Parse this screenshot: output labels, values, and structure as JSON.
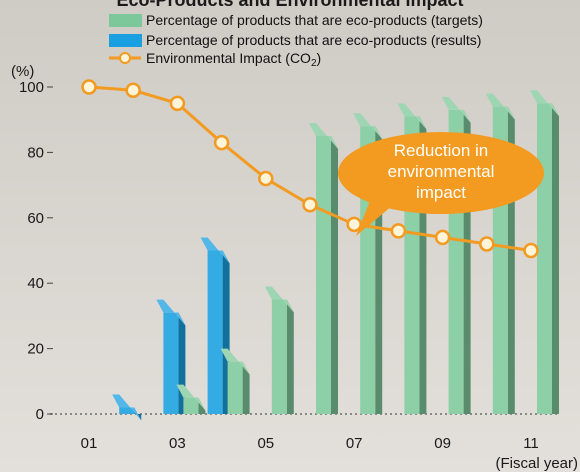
{
  "chart_data": {
    "type": "bar",
    "title": "Eco-Products and Environmental Impact",
    "categories": [
      "01",
      "02",
      "03",
      "04",
      "05",
      "06",
      "07",
      "08",
      "09",
      "10",
      "11"
    ],
    "x_tick_labels": [
      "01",
      "03",
      "05",
      "07",
      "09",
      "11"
    ],
    "xlabel": "(Fiscal year)",
    "ylabel": "(%)",
    "ylim": [
      0,
      100
    ],
    "y_ticks": [
      0,
      20,
      40,
      60,
      80,
      100
    ],
    "grid": false,
    "legend_position": "top",
    "series": [
      {
        "name": "Percentage of products that are eco-products (targets)",
        "kind": "bar",
        "color": "#7dc89a",
        "values": [
          null,
          null,
          5,
          16,
          35,
          85,
          88,
          91,
          93,
          94,
          95
        ]
      },
      {
        "name": "Percentage of products that are eco-products (results)",
        "kind": "bar",
        "color": "#1aa0e0",
        "values": [
          null,
          2,
          31,
          50,
          null,
          null,
          null,
          null,
          null,
          null,
          null
        ]
      },
      {
        "name": "Environmental Impact (CO",
        "name_sub": "2",
        "name_suffix": ")",
        "kind": "line",
        "color": "#f39a20",
        "values": [
          100,
          99,
          95,
          83,
          72,
          64,
          58,
          56,
          54,
          52,
          50
        ]
      }
    ],
    "annotation": {
      "lines": [
        "Reduction in",
        "environmental",
        "impact"
      ],
      "color": "#f39a20"
    }
  }
}
